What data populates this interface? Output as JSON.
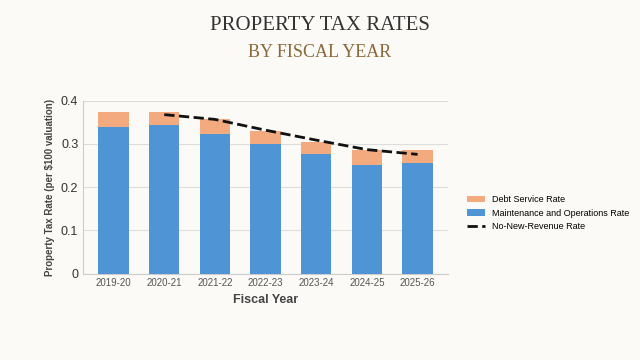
{
  "chart_data": {
    "type": "bar",
    "stacked": true,
    "title": "PROPERTY TAX RATES",
    "subtitle": "BY FISCAL YEAR",
    "x_label": "Fiscal Year",
    "y_label": "Property Tax Rate (per $100 valuation)",
    "categories": [
      "2019-20",
      "2020-21",
      "2021-22",
      "2022-23",
      "2023-24",
      "2024-25",
      "2025-26"
    ],
    "series": [
      {
        "name": "Maintenance and Operations Rate",
        "type": "bar",
        "color": "#4f95d6",
        "values": [
          0.34,
          0.343,
          0.322,
          0.3,
          0.278,
          0.252,
          0.257
        ]
      },
      {
        "name": "Debt Service Rate",
        "type": "bar",
        "color": "#f2aa7e",
        "values": [
          0.033,
          0.03,
          0.035,
          0.03,
          0.027,
          0.035,
          0.028
        ]
      },
      {
        "name": "No-New-Revenue Rate",
        "type": "line",
        "color": "#111111",
        "line_style": "dashed",
        "values": [
          null,
          0.368,
          0.357,
          0.332,
          0.309,
          0.287,
          0.276
        ]
      }
    ],
    "ylim": [
      0,
      0.4
    ],
    "yticks": [
      0,
      0.1,
      0.2,
      0.3,
      0.4
    ],
    "grid": true,
    "legend": "right"
  }
}
